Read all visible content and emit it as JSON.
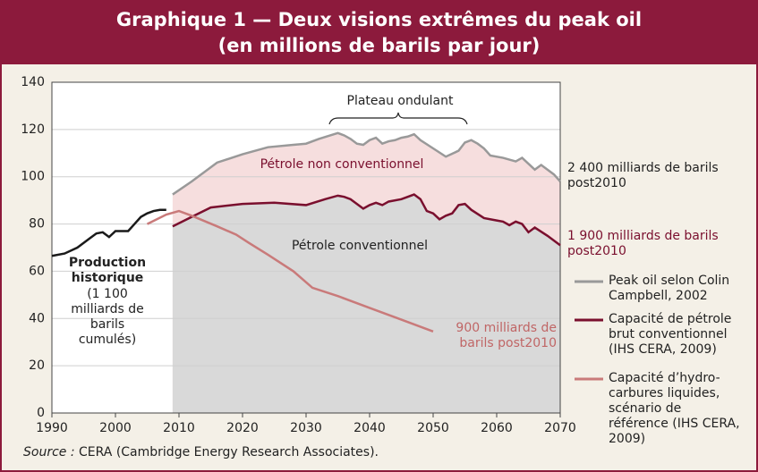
{
  "chart_data": {
    "type": "line",
    "title": "Graphique 1 — Deux visions extrêmes du peak oil",
    "subtitle": "(en millions de barils par jour)",
    "xlim": [
      1990,
      2070
    ],
    "xticks": [
      1990,
      2000,
      2010,
      2020,
      2030,
      2040,
      2050,
      2060,
      2070
    ],
    "ylim": [
      0,
      140
    ],
    "yticks": [
      0,
      20,
      40,
      60,
      80,
      100,
      120,
      140
    ],
    "grid": true,
    "series": [
      {
        "name": "Production historique",
        "color": "#1a1a1a",
        "x": [
          1990,
          1992,
          1994,
          1996,
          1997,
          1998,
          1999,
          2000,
          2001,
          2002,
          2003,
          2004,
          2005,
          2006,
          2007,
          2008
        ],
        "values": [
          66.5,
          67.5,
          70,
          74,
          76,
          76.5,
          74.5,
          77,
          77,
          77,
          80,
          83,
          84.5,
          85.5,
          86,
          86
        ]
      },
      {
        "name": "Peak oil selon Colin Campbell, 2002",
        "color": "#999999",
        "x": [
          2009,
          2012,
          2016,
          2020,
          2024,
          2028,
          2030,
          2032,
          2035,
          2036,
          2037,
          2038,
          2039,
          2040,
          2041,
          2042,
          2043,
          2044,
          2045,
          2046,
          2047,
          2048,
          2050,
          2052,
          2054,
          2055,
          2056,
          2057,
          2058,
          2059,
          2061,
          2063,
          2064,
          2066,
          2067,
          2069,
          2070
        ],
        "values": [
          92.5,
          98,
          106,
          109.5,
          112.5,
          113.5,
          114,
          116,
          118.5,
          117.5,
          116,
          114,
          113.5,
          115.5,
          116.5,
          114,
          115,
          115.5,
          116.5,
          117,
          118,
          115.5,
          112,
          108.5,
          111,
          114.5,
          115.5,
          114,
          112,
          109,
          108,
          106.5,
          108,
          103,
          105,
          101,
          98
        ]
      },
      {
        "name": "Capacité de pétrole brut conventionnel (IHS CERA, 2009)",
        "color": "#7a0f2e",
        "x": [
          2009,
          2012,
          2015,
          2020,
          2025,
          2030,
          2033,
          2035,
          2036,
          2037,
          2038,
          2039,
          2040,
          2041,
          2042,
          2043,
          2045,
          2046,
          2047,
          2048,
          2049,
          2050,
          2051,
          2052,
          2053,
          2054,
          2055,
          2056,
          2058,
          2060,
          2061,
          2062,
          2063,
          2064,
          2065,
          2066,
          2068,
          2070
        ],
        "values": [
          79,
          83,
          87,
          88.5,
          89,
          88,
          90.5,
          92,
          91.5,
          90.5,
          88.5,
          86.5,
          88,
          89,
          88,
          89.5,
          90.5,
          91.5,
          92.5,
          90.5,
          85.5,
          84.5,
          82,
          83.5,
          84.5,
          88,
          88.5,
          86,
          82.5,
          81.5,
          81,
          79.5,
          81,
          80,
          76.5,
          78.5,
          75,
          71
        ]
      },
      {
        "name": "Capacité d’hydro-carbures liquides, scénario de référence (IHS CERA, 2009)",
        "color": "#c97a7a",
        "x": [
          2005,
          2008,
          2010,
          2012,
          2016,
          2019,
          2021,
          2024,
          2028,
          2031,
          2035,
          2040,
          2045,
          2050
        ],
        "values": [
          80,
          84,
          85.5,
          83.5,
          79,
          75.5,
          72,
          67,
          60,
          53,
          49.5,
          44.5,
          39.5,
          34.5
        ]
      }
    ],
    "annotations": [
      "Plateau ondulant",
      "Pétrole non conventionnel",
      "Pétrole conventionnel",
      "(1 100 milliards de barils cumulés)",
      "900 milliards de barils post2010",
      "2 400 milliards de barils post2010",
      "1 900 milliards de barils post2010"
    ],
    "source_label": "Source :",
    "source_text": "CERA (Cambridge Energy Research Associates)."
  }
}
